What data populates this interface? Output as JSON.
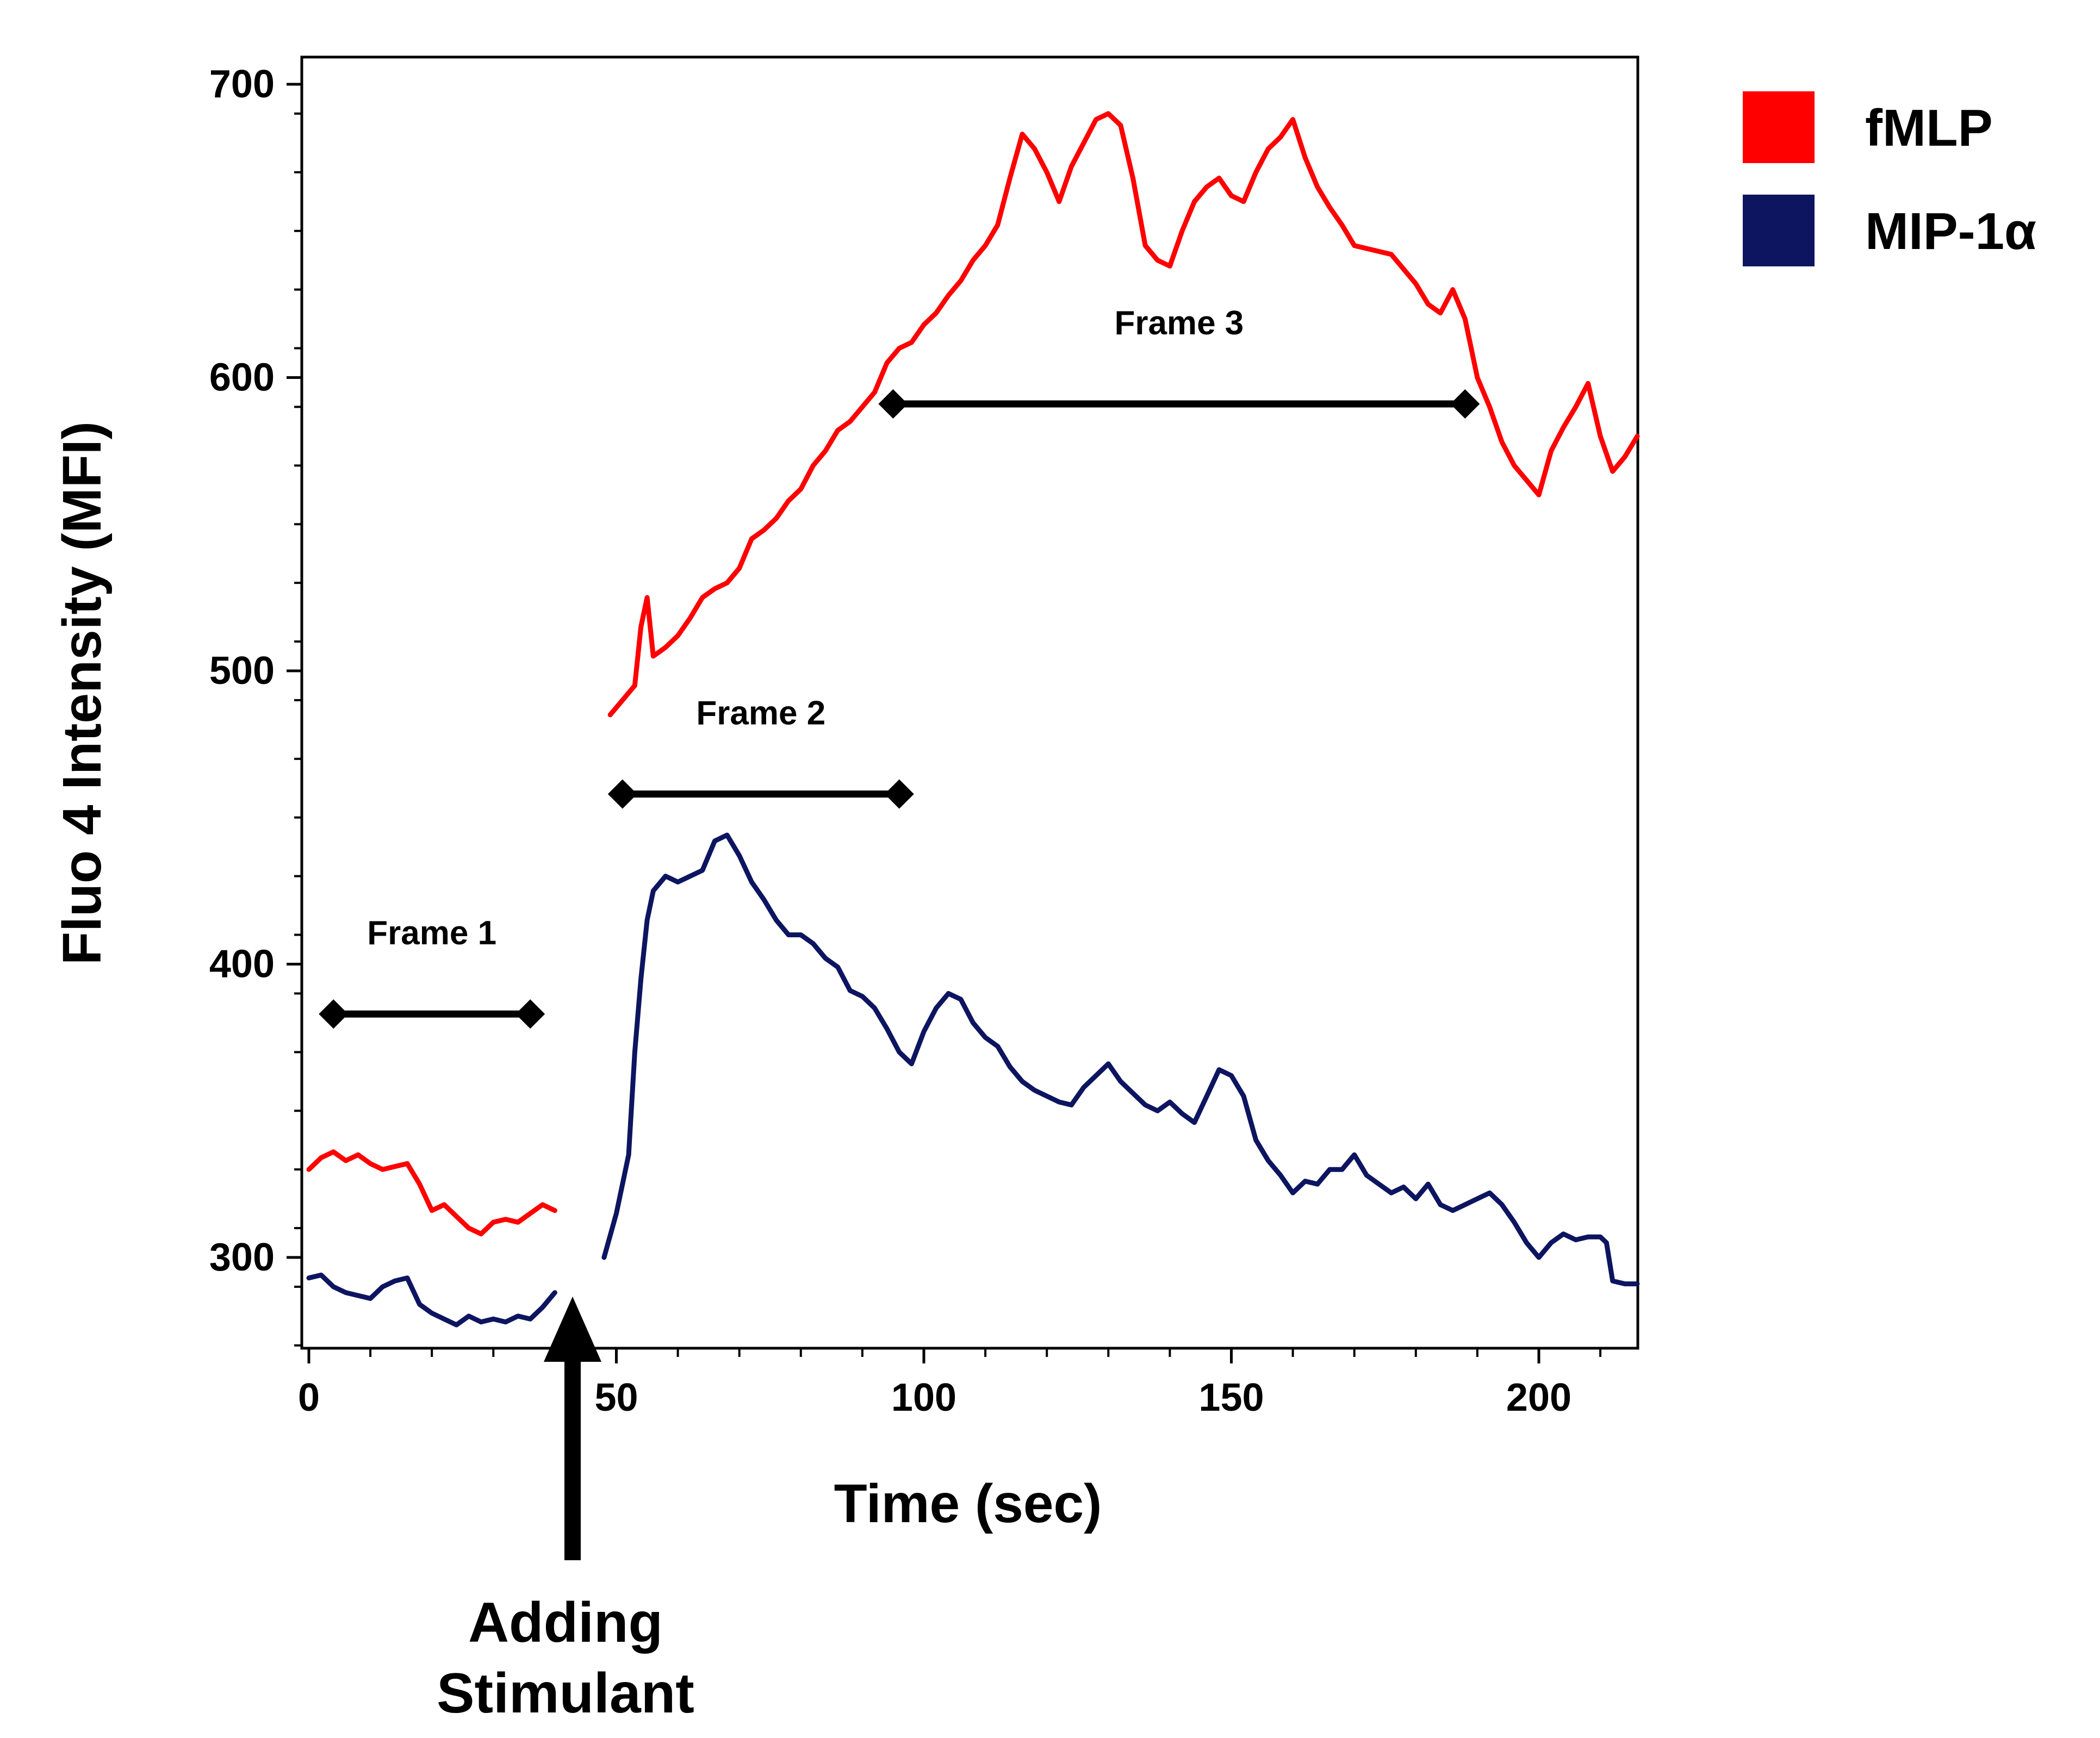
{
  "chart_data": {
    "type": "line",
    "title": "",
    "xlabel": "Time (sec)",
    "ylabel": "Fluo 4 Intensity (MFI)",
    "xlim": [
      0,
      216
    ],
    "ylim": [
      270,
      710
    ],
    "xticks": [
      0,
      50,
      100,
      150,
      200
    ],
    "yticks": [
      300,
      400,
      500,
      600,
      700
    ],
    "xtick_labels": [
      "0",
      "50",
      "100",
      "150",
      "200"
    ],
    "ytick_labels": [
      "300",
      "400",
      "500",
      "600",
      "700"
    ],
    "grid": false,
    "legend_position": "top-right outside",
    "series": [
      {
        "name": "fMLP",
        "color": "#ff0000",
        "segments": [
          [
            [
              0,
              330
            ],
            [
              2,
              334
            ],
            [
              4,
              336
            ],
            [
              6,
              333
            ],
            [
              8,
              335
            ],
            [
              10,
              332
            ],
            [
              12,
              330
            ],
            [
              14,
              331
            ],
            [
              16,
              332
            ],
            [
              18,
              325
            ],
            [
              20,
              316
            ],
            [
              22,
              318
            ],
            [
              24,
              314
            ],
            [
              26,
              310
            ],
            [
              28,
              308
            ],
            [
              30,
              312
            ],
            [
              32,
              313
            ],
            [
              34,
              312
            ],
            [
              36,
              315
            ],
            [
              38,
              318
            ],
            [
              40,
              316
            ]
          ],
          [
            [
              49,
              485
            ],
            [
              51,
              490
            ],
            [
              53,
              495
            ],
            [
              54,
              515
            ],
            [
              55,
              525
            ],
            [
              56,
              505
            ],
            [
              58,
              508
            ],
            [
              60,
              512
            ],
            [
              62,
              518
            ],
            [
              64,
              525
            ],
            [
              66,
              528
            ],
            [
              68,
              530
            ],
            [
              70,
              535
            ],
            [
              72,
              545
            ],
            [
              74,
              548
            ],
            [
              76,
              552
            ],
            [
              78,
              558
            ],
            [
              80,
              562
            ],
            [
              82,
              570
            ],
            [
              84,
              575
            ],
            [
              86,
              582
            ],
            [
              88,
              585
            ],
            [
              90,
              590
            ],
            [
              92,
              595
            ],
            [
              94,
              605
            ],
            [
              96,
              610
            ],
            [
              98,
              612
            ],
            [
              100,
              618
            ],
            [
              102,
              622
            ],
            [
              104,
              628
            ],
            [
              106,
              633
            ],
            [
              108,
              640
            ],
            [
              110,
              645
            ],
            [
              112,
              652
            ],
            [
              114,
              668
            ],
            [
              116,
              683
            ],
            [
              118,
              678
            ],
            [
              120,
              670
            ],
            [
              122,
              660
            ],
            [
              124,
              672
            ],
            [
              126,
              680
            ],
            [
              128,
              688
            ],
            [
              130,
              690
            ],
            [
              132,
              686
            ],
            [
              134,
              668
            ],
            [
              136,
              645
            ],
            [
              138,
              640
            ],
            [
              140,
              638
            ],
            [
              142,
              650
            ],
            [
              144,
              660
            ],
            [
              146,
              665
            ],
            [
              148,
              668
            ],
            [
              150,
              662
            ],
            [
              152,
              660
            ],
            [
              154,
              670
            ],
            [
              156,
              678
            ],
            [
              158,
              682
            ],
            [
              160,
              688
            ],
            [
              162,
              675
            ],
            [
              164,
              665
            ],
            [
              166,
              658
            ],
            [
              168,
              652
            ],
            [
              170,
              645
            ],
            [
              172,
              644
            ],
            [
              174,
              643
            ],
            [
              176,
              642
            ],
            [
              178,
              637
            ],
            [
              180,
              632
            ],
            [
              182,
              625
            ],
            [
              184,
              622
            ],
            [
              186,
              630
            ],
            [
              188,
              620
            ],
            [
              190,
              600
            ],
            [
              192,
              590
            ],
            [
              194,
              578
            ],
            [
              196,
              570
            ],
            [
              198,
              565
            ],
            [
              200,
              560
            ],
            [
              202,
              575
            ],
            [
              204,
              583
            ],
            [
              206,
              590
            ],
            [
              208,
              598
            ],
            [
              210,
              580
            ],
            [
              212,
              568
            ],
            [
              214,
              573
            ],
            [
              216,
              580
            ]
          ]
        ]
      },
      {
        "name": "MIP-1α",
        "color": "#0d1560",
        "segments": [
          [
            [
              0,
              293
            ],
            [
              2,
              294
            ],
            [
              4,
              290
            ],
            [
              6,
              288
            ],
            [
              8,
              287
            ],
            [
              10,
              286
            ],
            [
              12,
              290
            ],
            [
              14,
              292
            ],
            [
              16,
              293
            ],
            [
              18,
              284
            ],
            [
              20,
              281
            ],
            [
              22,
              279
            ],
            [
              24,
              277
            ],
            [
              26,
              280
            ],
            [
              28,
              278
            ],
            [
              30,
              279
            ],
            [
              32,
              278
            ],
            [
              34,
              280
            ],
            [
              36,
              279
            ],
            [
              38,
              283
            ],
            [
              40,
              288
            ]
          ],
          [
            [
              48,
              300
            ],
            [
              50,
              315
            ],
            [
              52,
              335
            ],
            [
              53,
              370
            ],
            [
              54,
              395
            ],
            [
              55,
              415
            ],
            [
              56,
              425
            ],
            [
              58,
              430
            ],
            [
              60,
              428
            ],
            [
              62,
              430
            ],
            [
              64,
              432
            ],
            [
              66,
              442
            ],
            [
              68,
              444
            ],
            [
              70,
              437
            ],
            [
              72,
              428
            ],
            [
              74,
              422
            ],
            [
              76,
              415
            ],
            [
              78,
              410
            ],
            [
              80,
              410
            ],
            [
              82,
              407
            ],
            [
              84,
              402
            ],
            [
              86,
              399
            ],
            [
              88,
              391
            ],
            [
              90,
              389
            ],
            [
              92,
              385
            ],
            [
              94,
              378
            ],
            [
              96,
              370
            ],
            [
              98,
              366
            ],
            [
              100,
              377
            ],
            [
              102,
              385
            ],
            [
              104,
              390
            ],
            [
              106,
              388
            ],
            [
              108,
              380
            ],
            [
              110,
              375
            ],
            [
              112,
              372
            ],
            [
              114,
              365
            ],
            [
              116,
              360
            ],
            [
              118,
              357
            ],
            [
              120,
              355
            ],
            [
              122,
              353
            ],
            [
              124,
              352
            ],
            [
              126,
              358
            ],
            [
              128,
              362
            ],
            [
              130,
              366
            ],
            [
              132,
              360
            ],
            [
              134,
              356
            ],
            [
              136,
              352
            ],
            [
              138,
              350
            ],
            [
              140,
              353
            ],
            [
              142,
              349
            ],
            [
              144,
              346
            ],
            [
              146,
              355
            ],
            [
              148,
              364
            ],
            [
              150,
              362
            ],
            [
              152,
              355
            ],
            [
              154,
              340
            ],
            [
              156,
              333
            ],
            [
              158,
              328
            ],
            [
              160,
              322
            ],
            [
              162,
              326
            ],
            [
              164,
              325
            ],
            [
              166,
              330
            ],
            [
              168,
              330
            ],
            [
              170,
              335
            ],
            [
              172,
              328
            ],
            [
              174,
              325
            ],
            [
              176,
              322
            ],
            [
              178,
              324
            ],
            [
              180,
              320
            ],
            [
              182,
              325
            ],
            [
              184,
              318
            ],
            [
              186,
              316
            ],
            [
              188,
              318
            ],
            [
              190,
              320
            ],
            [
              192,
              322
            ],
            [
              194,
              318
            ],
            [
              196,
              312
            ],
            [
              198,
              305
            ],
            [
              200,
              300
            ],
            [
              202,
              305
            ],
            [
              204,
              308
            ],
            [
              206,
              306
            ],
            [
              208,
              307
            ],
            [
              210,
              307
            ],
            [
              211,
              305
            ],
            [
              212,
              292
            ],
            [
              214,
              291
            ],
            [
              216,
              291
            ]
          ]
        ]
      }
    ],
    "annotations": [
      {
        "label": "Frame 1",
        "x_start": 4,
        "x_end": 36,
        "y": 383
      },
      {
        "label": "Frame 2",
        "x_start": 51,
        "x_end": 96,
        "y": 458
      },
      {
        "label": "Frame 3",
        "x_start": 95,
        "x_end": 188,
        "y": 591
      }
    ],
    "arrow_annotation": {
      "x": 43,
      "label_lines": [
        "Adding",
        "Stimulant"
      ]
    }
  }
}
